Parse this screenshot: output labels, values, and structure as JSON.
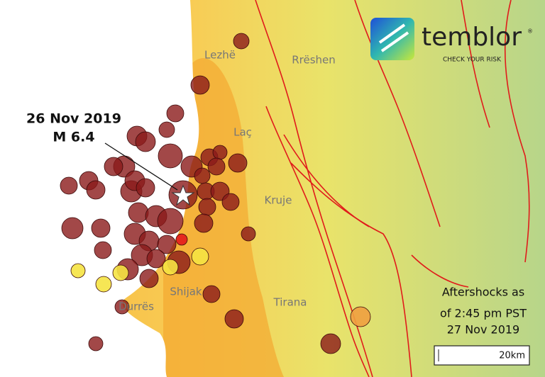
{
  "logo": {
    "name": "temblor",
    "trademark": "®",
    "tagline": "CHECK YOUR RISK"
  },
  "places": [
    "Lezhë",
    "Rrëshen",
    "Laç",
    "Kruje",
    "Shijak",
    "Durrës",
    "Tirana"
  ],
  "mainshock": {
    "date": "26 Nov 2019",
    "magnitude": "M 6.4"
  },
  "legend": {
    "lines": [
      "Aftershocks as",
      "of 2:45 pm PST",
      "27 Nov 2019"
    ]
  },
  "scale_bar": {
    "label": "20km"
  }
}
